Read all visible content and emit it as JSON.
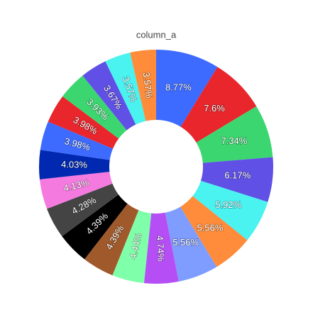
{
  "chart_data": {
    "type": "pie",
    "title": "column_a",
    "hole": 0.4,
    "values": [
      8.77,
      7.6,
      7.34,
      6.17,
      5.92,
      5.56,
      5.56,
      4.74,
      4.44,
      4.39,
      4.39,
      4.28,
      4.13,
      4.03,
      3.98,
      3.98,
      3.93,
      3.67,
      3.57,
      3.57
    ],
    "value_labels": [
      "8.77%",
      "7.6%",
      "7.34%",
      "6.17%",
      "5.92%",
      "5.56%",
      "5.56%",
      "4.74%",
      "4.44%",
      "4.39%",
      "4.39%",
      "4.28%",
      "4.13%",
      "4.03%",
      "3.98%",
      "3.98%",
      "3.93%",
      "3.67%",
      "3.57%",
      "3.57%"
    ],
    "colors": [
      "#3d6bff",
      "#e8262b",
      "#3cd671",
      "#6050e6",
      "#4af2f0",
      "#ff8c3a",
      "#7f9cff",
      "#b54ff5",
      "#80ffaa",
      "#a0592a",
      "#000000",
      "#444444",
      "#f57ae0",
      "#0028b0",
      "#3d6bff",
      "#e8262b",
      "#3cd671",
      "#6050e6",
      "#4af2f0",
      "#ff8c3a"
    ]
  }
}
